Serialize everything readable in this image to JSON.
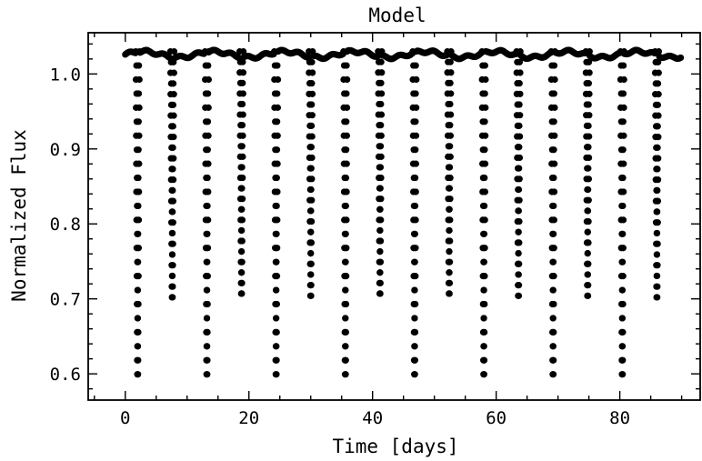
{
  "chart_data": {
    "type": "scatter",
    "title": "Model",
    "xlabel": "Time [days]",
    "ylabel": "Normalized Flux",
    "xlim": [
      -6,
      93
    ],
    "ylim": [
      0.565,
      1.055
    ],
    "x_ticks": [
      0,
      20,
      40,
      60,
      80
    ],
    "y_ticks": [
      0.6,
      0.7,
      0.8,
      0.9,
      1.0
    ],
    "y_tick_labels": [
      "0.6",
      "0.7",
      "0.8",
      "0.9",
      "1.0"
    ],
    "grid": false,
    "marker_color": "#000000",
    "baseline_flux": 1.03,
    "series": [
      {
        "points_per_eclipse": 48,
        "eclipses": [
          {
            "center_day": 2.0,
            "min_flux": 0.59
          },
          {
            "center_day": 7.6,
            "min_flux": 0.695
          },
          {
            "center_day": 13.2,
            "min_flux": 0.59
          },
          {
            "center_day": 18.8,
            "min_flux": 0.7
          },
          {
            "center_day": 24.4,
            "min_flux": 0.59
          },
          {
            "center_day": 30.0,
            "min_flux": 0.697
          },
          {
            "center_day": 35.6,
            "min_flux": 0.59
          },
          {
            "center_day": 41.2,
            "min_flux": 0.7
          },
          {
            "center_day": 46.8,
            "min_flux": 0.59
          },
          {
            "center_day": 52.4,
            "min_flux": 0.7
          },
          {
            "center_day": 58.0,
            "min_flux": 0.59
          },
          {
            "center_day": 63.6,
            "min_flux": 0.697
          },
          {
            "center_day": 69.2,
            "min_flux": 0.59
          },
          {
            "center_day": 74.8,
            "min_flux": 0.697
          },
          {
            "center_day": 80.4,
            "min_flux": 0.59
          },
          {
            "center_day": 86.0,
            "min_flux": 0.695
          }
        ],
        "out_of_eclipse_range": [
          0,
          90
        ]
      }
    ]
  }
}
